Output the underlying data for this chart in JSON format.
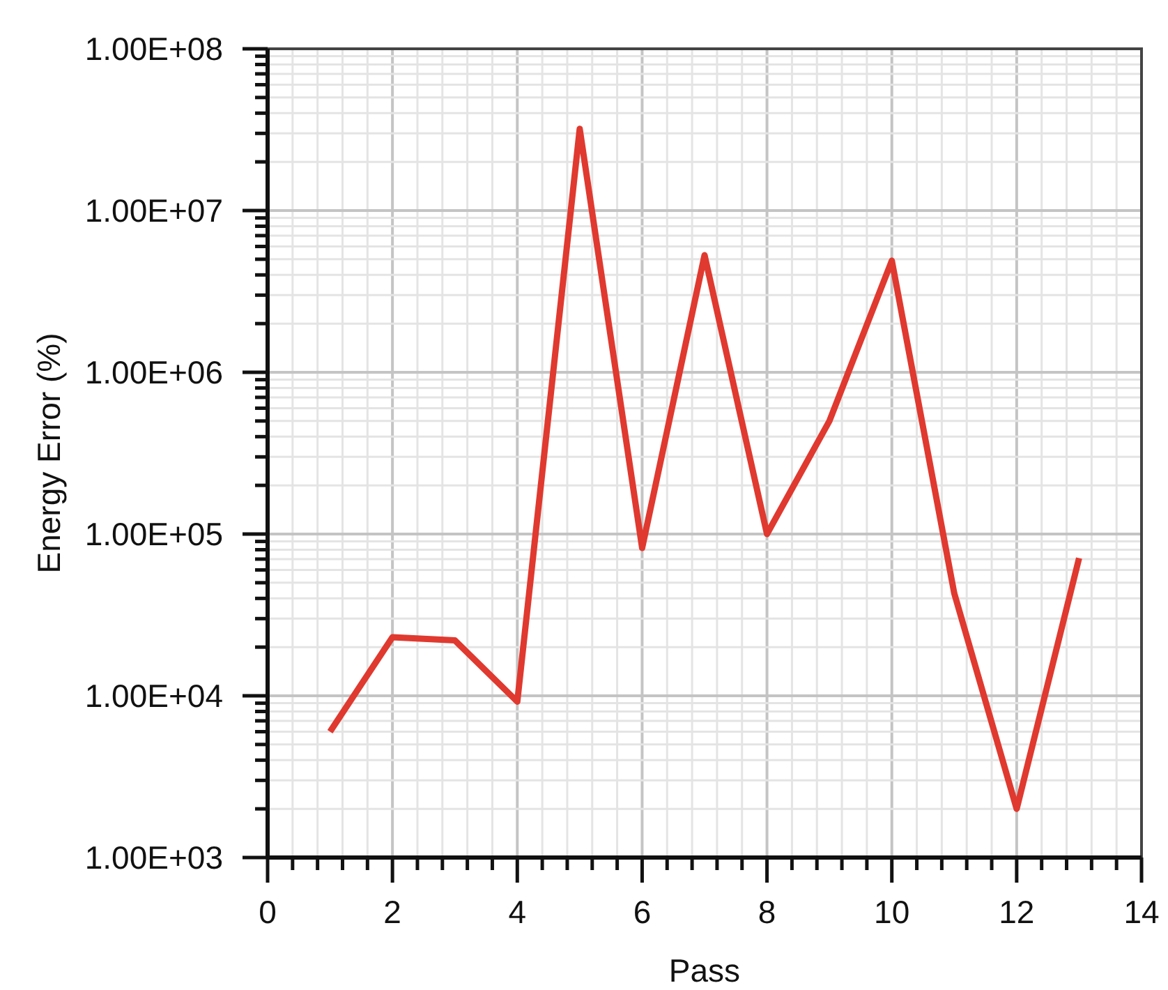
{
  "chart_data": {
    "type": "line",
    "xlabel": "Pass",
    "ylabel": "Energy Error (%)",
    "x": [
      1,
      2,
      3,
      4,
      5,
      6,
      7,
      8,
      9,
      10,
      11,
      12,
      13
    ],
    "series": [
      {
        "color": "#e0392f",
        "values": [
          6000,
          23000,
          22000,
          9200,
          32000000,
          82000,
          5300000,
          100000,
          500000,
          4900000,
          43000,
          2000,
          71000
        ]
      }
    ],
    "xlim": [
      0,
      14
    ],
    "xticks": [
      0,
      {
        "value": 0.4,
        "label": null
      },
      {
        "value": 0.8,
        "label": null
      },
      {
        "value": 1.2,
        "label": null
      },
      {
        "value": 1.6,
        "label": null
      },
      2,
      {
        "value": 2.4,
        "label": null
      },
      {
        "value": 2.8,
        "label": null
      },
      {
        "value": 3.2,
        "label": null
      },
      {
        "value": 3.6,
        "label": null
      },
      4,
      {
        "value": 4.4,
        "label": null
      },
      {
        "value": 4.8,
        "label": null
      },
      {
        "value": 5.2,
        "label": null
      },
      {
        "value": 5.6,
        "label": null
      },
      6,
      {
        "value": 6.4,
        "label": null
      },
      {
        "value": 6.8,
        "label": null
      },
      {
        "value": 7.2,
        "label": null
      },
      {
        "value": 7.6,
        "label": null
      },
      8,
      {
        "value": 8.4,
        "label": null
      },
      {
        "value": 8.8,
        "label": null
      },
      {
        "value": 9.2,
        "label": null
      },
      {
        "value": 9.6,
        "label": null
      },
      10,
      {
        "value": 10.4,
        "label": null
      },
      {
        "value": 10.8,
        "label": null
      },
      {
        "value": 11.2,
        "label": null
      },
      {
        "value": 11.6,
        "label": null
      },
      12,
      {
        "value": 12.4,
        "label": null
      },
      {
        "value": 12.8,
        "label": null
      },
      {
        "value": 13.2,
        "label": null
      },
      {
        "value": 13.6,
        "label": null
      },
      14
    ],
    "ylim": [
      1000,
      100000000
    ],
    "yticks": [
      {
        "value": 1000,
        "label": "1.00E+03"
      },
      {
        "value": 2000,
        "label": null
      },
      {
        "value": 3000,
        "label": null
      },
      {
        "value": 4000,
        "label": null
      },
      {
        "value": 5000,
        "label": null
      },
      {
        "value": 6000,
        "label": null
      },
      {
        "value": 7000,
        "label": null
      },
      {
        "value": 8000,
        "label": null
      },
      {
        "value": 9000,
        "label": null
      },
      {
        "value": 10000,
        "label": "1.00E+04"
      },
      {
        "value": 20000,
        "label": null
      },
      {
        "value": 30000,
        "label": null
      },
      {
        "value": 40000,
        "label": null
      },
      {
        "value": 50000,
        "label": null
      },
      {
        "value": 60000,
        "label": null
      },
      {
        "value": 70000,
        "label": null
      },
      {
        "value": 80000,
        "label": null
      },
      {
        "value": 90000,
        "label": null
      },
      {
        "value": 100000,
        "label": "1.00E+05"
      },
      {
        "value": 200000,
        "label": null
      },
      {
        "value": 300000,
        "label": null
      },
      {
        "value": 400000,
        "label": null
      },
      {
        "value": 500000,
        "label": null
      },
      {
        "value": 600000,
        "label": null
      },
      {
        "value": 700000,
        "label": null
      },
      {
        "value": 800000,
        "label": null
      },
      {
        "value": 900000,
        "label": null
      },
      {
        "value": 1000000,
        "label": "1.00E+06"
      },
      {
        "value": 2000000,
        "label": null
      },
      {
        "value": 3000000,
        "label": null
      },
      {
        "value": 4000000,
        "label": null
      },
      {
        "value": 5000000,
        "label": null
      },
      {
        "value": 6000000,
        "label": null
      },
      {
        "value": 7000000,
        "label": null
      },
      {
        "value": 8000000,
        "label": null
      },
      {
        "value": 9000000,
        "label": null
      },
      {
        "value": 10000000,
        "label": "1.00E+07"
      },
      {
        "value": 20000000,
        "label": null
      },
      {
        "value": 30000000,
        "label": null
      },
      {
        "value": 40000000,
        "label": null
      },
      {
        "value": 50000000,
        "label": null
      },
      {
        "value": 60000000,
        "label": null
      },
      {
        "value": 70000000,
        "label": null
      },
      {
        "value": 80000000,
        "label": null
      },
      {
        "value": 90000000,
        "label": null
      },
      {
        "value": 100000000,
        "label": "1.00E+08"
      }
    ],
    "log": "y",
    "grid": true,
    "marker": "none",
    "line_style": "solid"
  }
}
